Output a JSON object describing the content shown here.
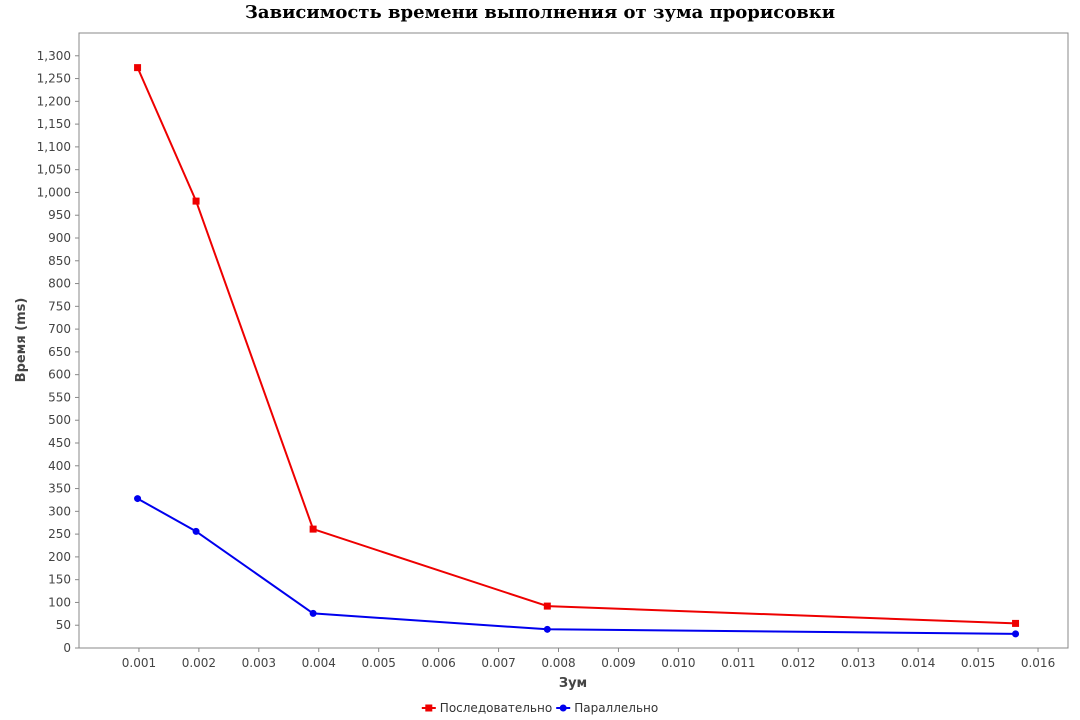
{
  "chart_data": {
    "type": "line",
    "title": "Зависимость времени выполнения от зума прорисовки",
    "xlabel": "Зум",
    "ylabel": "Время (ms)",
    "xlim": [
      0.0,
      0.0165
    ],
    "ylim": [
      0,
      1350
    ],
    "x_ticks": [
      "0.001",
      "0.002",
      "0.003",
      "0.004",
      "0.005",
      "0.006",
      "0.007",
      "0.008",
      "0.009",
      "0.010",
      "0.011",
      "0.012",
      "0.013",
      "0.014",
      "0.015",
      "0.016"
    ],
    "y_ticks": [
      "0",
      "50",
      "100",
      "150",
      "200",
      "250",
      "300",
      "350",
      "400",
      "450",
      "500",
      "550",
      "600",
      "650",
      "700",
      "750",
      "800",
      "850",
      "900",
      "950",
      "1,000",
      "1,050",
      "1,100",
      "1,150",
      "1,200",
      "1,250",
      "1,300"
    ],
    "grid": false,
    "legend_position": "bottom",
    "series": [
      {
        "name": "Последовательно",
        "color": "#ee0000",
        "marker": "square",
        "x": [
          0.000977,
          0.001953,
          0.003906,
          0.007813,
          0.015625
        ],
        "y": [
          1274,
          981,
          261,
          92,
          54
        ]
      },
      {
        "name": "Параллельно",
        "color": "#0000ee",
        "marker": "circle",
        "x": [
          0.000977,
          0.001953,
          0.003906,
          0.007813,
          0.015625
        ],
        "y": [
          328,
          256,
          76,
          41,
          31
        ]
      }
    ]
  }
}
